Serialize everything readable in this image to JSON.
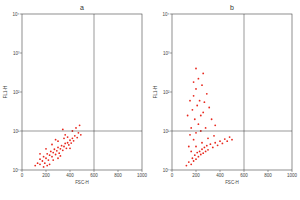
{
  "chart_data": [
    {
      "type": "scatter",
      "title": "a",
      "x_label": "FSC-H",
      "y_label": "FL1-H",
      "xlim": [
        0,
        1000
      ],
      "ylim": [
        1,
        10000
      ],
      "log": "y",
      "xticks": [
        0,
        200,
        400,
        600,
        800,
        1000
      ],
      "yticks": [
        {
          "value": 1,
          "label": "10⁰"
        },
        {
          "value": 10,
          "label": "10¹"
        },
        {
          "value": 100,
          "label": "10²"
        },
        {
          "value": 1000,
          "label": "10³"
        },
        {
          "value": 10000,
          "label": "10⁴"
        }
      ],
      "quadrant": {
        "x": 600,
        "y": 10
      },
      "color": "#e8281e",
      "marker": "dot",
      "x": [
        110,
        130,
        150,
        150,
        170,
        180,
        190,
        200,
        210,
        220,
        230,
        240,
        250,
        260,
        270,
        280,
        290,
        300,
        310,
        320,
        330,
        340,
        350,
        360,
        370,
        380,
        390,
        400,
        410,
        420,
        430,
        440,
        460,
        470,
        490,
        250,
        300,
        350,
        200,
        180,
        260,
        320,
        400,
        280,
        360,
        420,
        450,
        230,
        150,
        340,
        480,
        300,
        380,
        210
      ],
      "values": [
        1.3,
        1.5,
        1.4,
        1.9,
        1.7,
        2.2,
        1.5,
        2.0,
        2.6,
        1.8,
        2.4,
        3.0,
        2.2,
        2.8,
        3.4,
        2.5,
        3.1,
        3.8,
        2.7,
        3.5,
        4.2,
        3.2,
        4.0,
        4.8,
        3.6,
        5.0,
        4.4,
        5.8,
        4.9,
        6.5,
        5.6,
        7.5,
        6.8,
        9,
        8,
        4.5,
        5.5,
        6.5,
        3.5,
        1.2,
        1.8,
        2.3,
        3.6,
        6,
        8,
        10,
        12,
        1.4,
        2.6,
        11,
        14,
        2.0,
        7,
        1.3
      ]
    },
    {
      "type": "scatter",
      "title": "b",
      "x_label": "FSC-H",
      "y_label": "FL1-H",
      "xlim": [
        0,
        1000
      ],
      "ylim": [
        1,
        10000
      ],
      "log": "y",
      "xticks": [
        0,
        200,
        400,
        600,
        800,
        1000
      ],
      "yticks": [
        {
          "value": 1,
          "label": "10⁰"
        },
        {
          "value": 10,
          "label": "10¹"
        },
        {
          "value": 100,
          "label": "10²"
        },
        {
          "value": 1000,
          "label": "10³"
        },
        {
          "value": 10000,
          "label": "10⁴"
        }
      ],
      "quadrant": {
        "x": 600,
        "y": 10
      },
      "color": "#e8281e",
      "marker": "dot",
      "x": [
        120,
        140,
        160,
        170,
        180,
        190,
        200,
        210,
        220,
        230,
        240,
        250,
        260,
        270,
        280,
        290,
        300,
        320,
        340,
        360,
        380,
        400,
        420,
        440,
        460,
        480,
        500,
        250,
        300,
        350,
        200,
        160,
        140,
        180,
        200,
        160,
        220,
        190,
        240,
        170,
        210,
        260,
        230,
        180,
        270,
        200,
        250,
        150,
        290,
        220,
        180,
        310,
        260,
        130,
        330,
        280,
        360,
        240,
        150,
        200
      ],
      "values": [
        1.3,
        1.6,
        1.4,
        2.0,
        1.7,
        2.4,
        1.9,
        2.8,
        2.2,
        3.0,
        2.5,
        3.4,
        2.7,
        3.8,
        3.0,
        4.2,
        3.3,
        4.6,
        3.8,
        5.0,
        4.3,
        5.5,
        4.8,
        6.2,
        5.5,
        7,
        6,
        5,
        6.5,
        7.5,
        4,
        3,
        4,
        6,
        9,
        12,
        15,
        20,
        25,
        35,
        45,
        30,
        60,
        80,
        55,
        120,
        150,
        60,
        90,
        220,
        180,
        40,
        300,
        25,
        20,
        12,
        14,
        10,
        8,
        400
      ]
    }
  ]
}
